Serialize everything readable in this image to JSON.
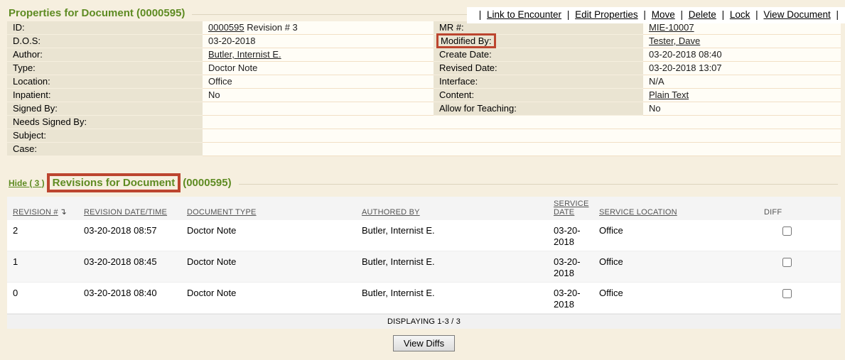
{
  "toolbar": {
    "separator": "|",
    "links": [
      "Link to Encounter",
      "Edit Properties",
      "Move",
      "Delete",
      "Lock",
      "View Document"
    ]
  },
  "properties": {
    "title": "Properties for Document (0000595)",
    "rows_left": [
      {
        "label": "ID:",
        "link": "0000595",
        "text": "Revision # 3"
      },
      {
        "label": "D.O.S:",
        "text": "03-20-2018"
      },
      {
        "label": "Author:",
        "link": "Butler, Internist E."
      },
      {
        "label": "Type:",
        "text": "Doctor Note"
      },
      {
        "label": "Location:",
        "text": "Office"
      },
      {
        "label": "Inpatient:",
        "text": "No"
      },
      {
        "label": "Signed By:",
        "text": ""
      }
    ],
    "rows_right": [
      {
        "label": "MR #:",
        "link": "MIE-10007"
      },
      {
        "label": "Modified By:",
        "link": "Tester, Dave"
      },
      {
        "label": "Create Date:",
        "text": "03-20-2018 08:40"
      },
      {
        "label": "Revised Date:",
        "text": "03-20-2018 13:07"
      },
      {
        "label": "Interface:",
        "text": "N/A"
      },
      {
        "label": "Content:",
        "link": "Plain Text"
      },
      {
        "label": "Allow for Teaching:",
        "text": "No"
      }
    ],
    "rows_full": [
      {
        "label": "Needs Signed By:",
        "text": ""
      },
      {
        "label": "Subject:",
        "text": ""
      },
      {
        "label": "Case:",
        "text": ""
      }
    ]
  },
  "revisions": {
    "hide_link": "Hide ( 3 )",
    "title": "Revisions for Document",
    "title_suffix": "(0000595)",
    "sort_icon": "↴",
    "columns": {
      "revision": "REVISION #",
      "datetime": "REVISION DATE/TIME",
      "doc_type": "DOCUMENT TYPE",
      "authored_by": "AUTHORED BY",
      "service_date": "SERVICE DATE",
      "service_location": "SERVICE LOCATION",
      "diff": "DIFF"
    },
    "rows": [
      {
        "revision": "2",
        "datetime": "03-20-2018 08:57",
        "doc_type": "Doctor Note",
        "authored_by": "Butler, Internist E.",
        "service_date": "03-20-2018",
        "service_location": "Office"
      },
      {
        "revision": "1",
        "datetime": "03-20-2018 08:45",
        "doc_type": "Doctor Note",
        "authored_by": "Butler, Internist E.",
        "service_date": "03-20-2018",
        "service_location": "Office"
      },
      {
        "revision": "0",
        "datetime": "03-20-2018 08:40",
        "doc_type": "Doctor Note",
        "authored_by": "Butler, Internist E.",
        "service_date": "03-20-2018",
        "service_location": "Office"
      }
    ],
    "footer": "DISPLAYING 1-3 / 3",
    "view_diffs_label": "View Diffs"
  },
  "colors": {
    "accent_green": "#5e8b22",
    "annotation_red": "#bc452f",
    "page_bg": "#f6efdf",
    "label_cell_bg": "#eae4d2"
  }
}
